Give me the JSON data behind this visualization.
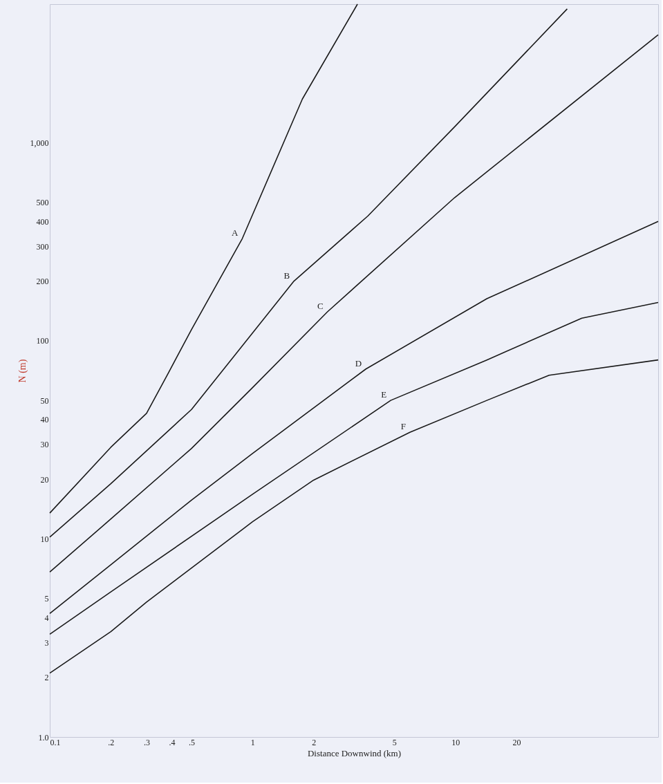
{
  "chart_data": {
    "type": "line",
    "xlabel": "Distance Downwind (km)",
    "ylabel": "N (m)",
    "log": "xy",
    "grid": false,
    "marker": "none",
    "line_style": "solid",
    "xlim": [
      0.1,
      100
    ],
    "ylim": [
      1,
      5000
    ],
    "xticks": [
      {
        "value": 0.1,
        "label": "0.1"
      },
      {
        "value": 0.2,
        "label": ".2"
      },
      {
        "value": 0.3,
        "label": ".3"
      },
      {
        "value": 0.4,
        "label": ".4"
      },
      {
        "value": 0.5,
        "label": ".5"
      },
      1,
      2,
      5,
      10,
      20
    ],
    "yticks": [
      {
        "value": 1,
        "label": "1.0"
      },
      2,
      3,
      4,
      5,
      10,
      20,
      30,
      40,
      50,
      100,
      200,
      300,
      400,
      500,
      {
        "value": 1000,
        "label": "1,000"
      }
    ],
    "series": [
      {
        "color": "#1a1a1a",
        "x": [
          0.1,
          0.2,
          0.3,
          0.385,
          0.5,
          0.89,
          1.76,
          3.29
        ],
        "values": [
          13.5,
          29,
          43,
          69,
          114,
          328,
          1660,
          5000
        ]
      },
      {
        "color": "#1a1a1a",
        "x": [
          0.1,
          0.2,
          0.5,
          1.6,
          3.7,
          9.9,
          35.6
        ],
        "values": [
          10.2,
          19,
          45,
          200,
          426,
          1200,
          4730
        ]
      },
      {
        "color": "#1a1a1a",
        "x": [
          0.1,
          0.2,
          0.5,
          1,
          2.34,
          9.9,
          100
        ],
        "values": [
          6.8,
          12.6,
          28.6,
          58,
          140,
          527,
          3500
        ]
      },
      {
        "color": "#1a1a1a",
        "x": [
          0.1,
          0.2,
          0.5,
          1,
          3.62,
          14.3,
          100
        ],
        "values": [
          4.2,
          7.4,
          15.7,
          27,
          72,
          163,
          400
        ]
      },
      {
        "color": "#1a1a1a",
        "x": [
          0.1,
          0.2,
          1,
          4.8,
          14.3,
          42,
          100
        ],
        "values": [
          3.3,
          5.4,
          16.8,
          50,
          80,
          130,
          156
        ]
      },
      {
        "color": "#1a1a1a",
        "x": [
          0.1,
          0.2,
          0.3,
          1,
          2,
          5.97,
          14.3,
          29,
          100
        ],
        "values": [
          2.1,
          3.4,
          4.8,
          12.2,
          19.8,
          34.5,
          50,
          67,
          80
        ]
      }
    ],
    "annotations": [
      {
        "text": "A",
        "x": 0.89,
        "y": 328
      },
      {
        "text": "B",
        "x": 1.6,
        "y": 200
      },
      {
        "text": "C",
        "x": 2.34,
        "y": 140
      },
      {
        "text": "D",
        "x": 3.62,
        "y": 72
      },
      {
        "text": "E",
        "x": 4.8,
        "y": 50
      },
      {
        "text": "F",
        "x": 5.97,
        "y": 34.5
      }
    ]
  }
}
